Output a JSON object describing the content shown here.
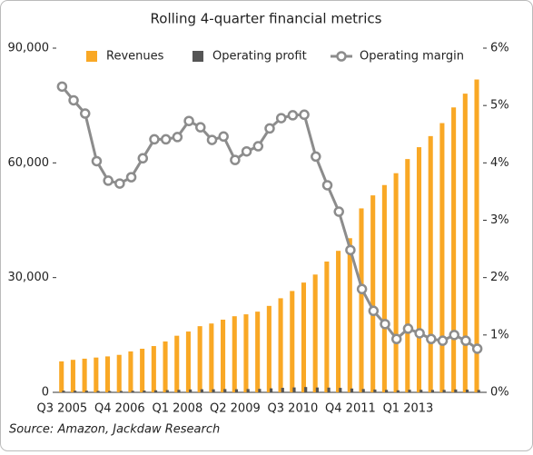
{
  "chart_data": {
    "type": "bar-line",
    "title": "Rolling 4-quarter financial metrics",
    "source": "Source: Amazon, Jackdaw Research",
    "categories": [
      "Q3 2005",
      null,
      null,
      null,
      null,
      "Q4 2006",
      null,
      null,
      null,
      null,
      "Q1 2008",
      null,
      null,
      null,
      null,
      "Q2 2009",
      null,
      null,
      null,
      null,
      "Q3 2010",
      null,
      null,
      null,
      null,
      "Q4 2011",
      null,
      null,
      null,
      null,
      "Q1 2013",
      null,
      null,
      null,
      null,
      null,
      null
    ],
    "series": [
      {
        "name": "Revenues",
        "color": "#f9a825",
        "kind": "bar",
        "axis": "y",
        "values": [
          8100,
          8500,
          8800,
          9100,
          9400,
          9800,
          10700,
          11400,
          12100,
          13300,
          14800,
          15900,
          17300,
          18000,
          19000,
          19900,
          20400,
          21100,
          22600,
          24600,
          26500,
          28700,
          30800,
          34200,
          37000,
          40300,
          48100,
          51500,
          54200,
          57300,
          61000,
          64100,
          67000,
          70400,
          74500,
          78100,
          81800
        ]
      },
      {
        "name": "Operating profit",
        "color": "#555555",
        "kind": "bar",
        "axis": "y",
        "values": [
          432,
          433,
          428,
          367,
          347,
          357,
          401,
          465,
          534,
          587,
          659,
          752,
          799,
          792,
          847,
          806,
          857,
          905,
          1040,
          1176,
          1280,
          1389,
          1266,
          1235,
          1166,
          999,
          866,
          731,
          645,
          533,
          677,
          660,
          623,
          634,
          745,
          703,
          622
        ]
      },
      {
        "name": "Operating margin",
        "color": "#8c8c8c",
        "kind": "line",
        "axis": "y2",
        "values": [
          5.33,
          5.09,
          4.86,
          4.03,
          3.69,
          3.64,
          3.75,
          4.08,
          4.41,
          4.41,
          4.45,
          4.73,
          4.62,
          4.4,
          4.46,
          4.05,
          4.2,
          4.29,
          4.6,
          4.78,
          4.83,
          4.84,
          4.11,
          3.61,
          3.15,
          2.48,
          1.8,
          1.42,
          1.19,
          0.93,
          1.11,
          1.03,
          0.93,
          0.9,
          1.0,
          0.9,
          0.76
        ]
      }
    ],
    "ylim": [
      0,
      90000
    ],
    "yticks": [
      0,
      {
        "value": 30000,
        "label": "30,000"
      },
      {
        "value": 60000,
        "label": "60,000"
      },
      {
        "value": 90000,
        "label": "90,000"
      }
    ],
    "y2lim": [
      0,
      6
    ],
    "y2ticks": [
      {
        "value": 0,
        "label": "0%"
      },
      {
        "value": 1,
        "label": "1%"
      },
      {
        "value": 2,
        "label": "2%"
      },
      {
        "value": 3,
        "label": "3%"
      },
      {
        "value": 4,
        "label": "4%"
      },
      {
        "value": 5,
        "label": "5%"
      },
      {
        "value": 6,
        "label": "6%"
      }
    ],
    "grid": false,
    "legend": "top"
  }
}
